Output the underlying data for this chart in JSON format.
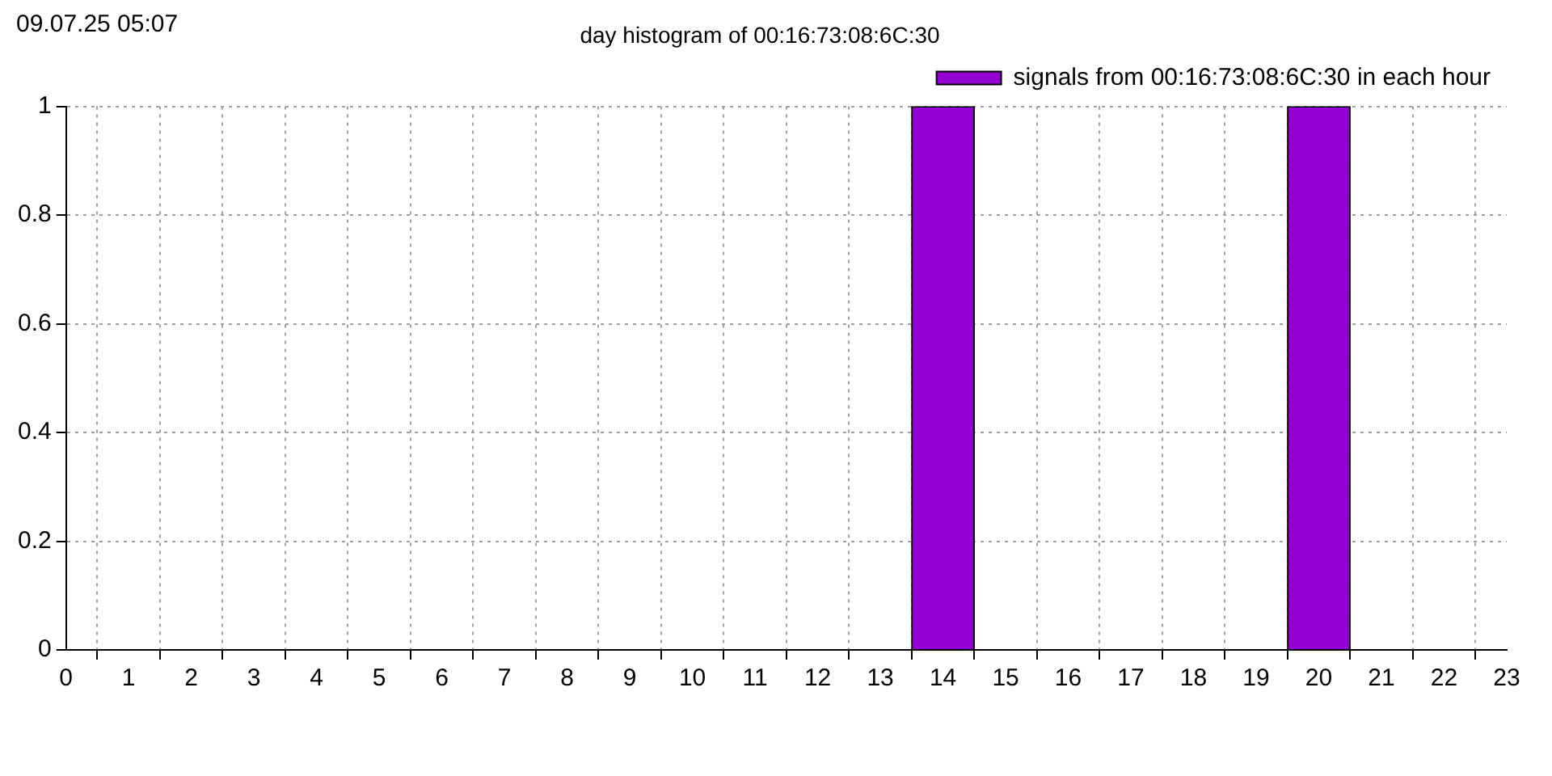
{
  "chart_data": {
    "type": "bar",
    "title": "day histogram of 00:16:73:08:6C:30",
    "annotations": [
      "09.07.25 05:07"
    ],
    "x": [
      14,
      20
    ],
    "series": [
      {
        "name": "signals from 00:16:73:08:6C:30 in each hour",
        "color": "#9400d3",
        "values": [
          1,
          1
        ]
      }
    ],
    "xlim": [
      0,
      23
    ],
    "xticks": [
      0,
      1,
      2,
      3,
      4,
      5,
      6,
      7,
      8,
      9,
      10,
      11,
      12,
      13,
      14,
      15,
      16,
      17,
      18,
      19,
      20,
      21,
      22,
      23
    ],
    "ylim": [
      0,
      1
    ],
    "yticks": [
      0,
      0.2,
      0.4,
      0.6,
      0.8,
      1
    ],
    "grid": true,
    "legend": "top right"
  }
}
